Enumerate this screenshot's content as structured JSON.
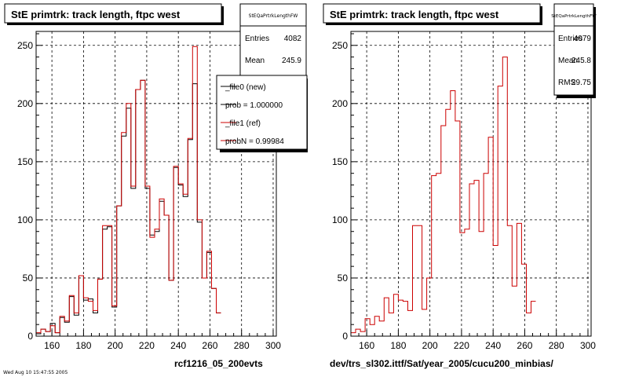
{
  "background": "#ffffff",
  "colors": {
    "new": "#000000",
    "ref": "#cc0000",
    "grid": "#000000"
  },
  "footer_timestamp": "Wed Aug 10 15:47:55 2005",
  "chart_data": [
    {
      "type": "histogram",
      "title": "StE primtrk: track length, ftpc west",
      "xlabel": "rcf1216_05_200evts",
      "ylabel": "",
      "xlim": [
        150,
        302
      ],
      "ylim": [
        0,
        262
      ],
      "grid": true,
      "x_ticks": [
        160,
        180,
        200,
        220,
        240,
        260,
        280,
        300
      ],
      "y_ticks": [
        0,
        50,
        100,
        150,
        200,
        250
      ],
      "bin_edges_start": 150,
      "bin_width": 3,
      "series": [
        {
          "name": "_file0 (new)",
          "color": "#000000",
          "values": [
            2,
            6,
            4,
            11,
            3,
            16,
            12,
            34,
            18,
            52,
            31,
            32,
            20,
            49,
            92,
            94,
            25,
            112,
            172,
            196,
            127,
            212,
            220,
            127,
            87,
            90,
            116,
            104,
            48,
            145,
            130,
            120,
            169,
            217,
            98,
            50,
            72,
            41,
            20
          ]
        },
        {
          "name": "_file1 (ref)",
          "color": "#cc0000",
          "values": [
            3,
            6,
            4,
            9,
            3,
            17,
            13,
            35,
            20,
            52,
            33,
            30,
            22,
            49,
            95,
            95,
            26,
            112,
            175,
            200,
            129,
            212,
            220,
            129,
            85,
            92,
            118,
            104,
            48,
            146,
            131,
            122,
            170,
            249,
            100,
            50,
            73,
            41,
            20
          ]
        }
      ],
      "stats": {
        "title": "StEQaPrtrkLengthFW",
        "entries_label": "Entries",
        "entries": "4082",
        "mean_label": "Mean",
        "mean": "245.9"
      },
      "legend": {
        "position": "top-right",
        "entries": [
          {
            "label": "_file0 (new)",
            "color": "#000000"
          },
          {
            "label": "prob = 1.000000",
            "color": "#000000"
          },
          {
            "label": "_file1 (ref)",
            "color": "#cc0000"
          },
          {
            "label": "probN = 0.99984",
            "color": "#cc0000"
          }
        ]
      }
    },
    {
      "type": "histogram",
      "title": "StE primtrk: track length, ftpc west",
      "xlabel": "dev/trs_sl302.ittf/Sat/year_2005/cucu200_minbias/",
      "ylabel": "",
      "xlim": [
        150,
        302
      ],
      "ylim": [
        0,
        262
      ],
      "grid": true,
      "x_ticks": [
        160,
        180,
        200,
        220,
        240,
        260,
        280,
        300
      ],
      "y_ticks": [
        0,
        50,
        100,
        150,
        200,
        250
      ],
      "bin_edges_start": 150,
      "bin_width": 3,
      "series": [
        {
          "name": "",
          "color": "#cc0000",
          "values": [
            3,
            6,
            4,
            15,
            10,
            17,
            13,
            33,
            20,
            36,
            31,
            30,
            22,
            95,
            95,
            23,
            50,
            138,
            140,
            181,
            195,
            211,
            185,
            89,
            92,
            131,
            134,
            90,
            140,
            171,
            78,
            215,
            240,
            95,
            43,
            97,
            62,
            20,
            30
          ]
        }
      ],
      "stats": {
        "title": "StEQaPrtrkLengthFW",
        "entries_label": "Entries",
        "entries": "4079",
        "mean_label": "Mean",
        "mean": "245.8",
        "rms_label": "RMS",
        "rms": "29.75"
      }
    }
  ]
}
